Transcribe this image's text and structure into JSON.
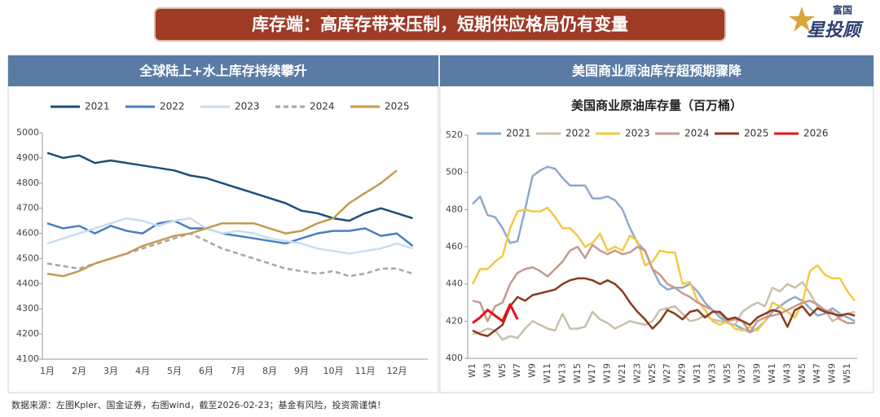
{
  "header": {
    "title": "库存端：高库存带来压制，短期供应格局仍有变量"
  },
  "logo": {
    "small": "富国",
    "big": "星投顾"
  },
  "footer": "数据来源：左图Kpler、国金证券，右图wind，截至2026-02-23；基金有风险，投资需谨慎！",
  "chart_data": [
    {
      "type": "line",
      "panel_title": "全球陆上+水上库存持续攀升",
      "categories": [
        "1月",
        null,
        "2月",
        null,
        "3月",
        null,
        "4月",
        null,
        "5月",
        null,
        "6月",
        null,
        "7月",
        null,
        "8月",
        null,
        "9月",
        null,
        "10月",
        null,
        "11月",
        null,
        "12月",
        null
      ],
      "ylim": [
        4100,
        5000
      ],
      "yticks": [
        4100,
        4200,
        4300,
        4400,
        4500,
        4600,
        4700,
        4800,
        4900,
        5000
      ],
      "grid": false,
      "legend": "top",
      "series": [
        {
          "name": "2021",
          "color": "#1f4e79",
          "line_style": "solid",
          "values": [
            4920,
            4900,
            4910,
            4880,
            4890,
            4880,
            4870,
            4860,
            4850,
            4830,
            4820,
            4800,
            4780,
            4760,
            4740,
            4720,
            4690,
            4680,
            4660,
            4650,
            4680,
            4700,
            4680,
            4660
          ]
        },
        {
          "name": "2022",
          "color": "#4a7ebf",
          "line_style": "solid",
          "values": [
            4640,
            4620,
            4630,
            4600,
            4630,
            4610,
            4600,
            4640,
            4650,
            4620,
            4620,
            4600,
            4590,
            4580,
            4570,
            4560,
            4580,
            4600,
            4610,
            4610,
            4620,
            4590,
            4600,
            4550
          ]
        },
        {
          "name": "2023",
          "color": "#c8ddf0",
          "line_style": "solid",
          "values": [
            4560,
            4580,
            4600,
            4620,
            4640,
            4660,
            4650,
            4630,
            4650,
            4660,
            4620,
            4600,
            4610,
            4600,
            4580,
            4570,
            4560,
            4540,
            4530,
            4520,
            4530,
            4540,
            4560,
            4540
          ]
        },
        {
          "name": "2024",
          "color": "#a6a6a6",
          "line_style": "dashed",
          "values": [
            4480,
            4470,
            4460,
            4480,
            4500,
            4520,
            4540,
            4560,
            4580,
            4600,
            4570,
            4540,
            4520,
            4500,
            4480,
            4460,
            4450,
            4440,
            4450,
            4430,
            4440,
            4460,
            4460,
            4440
          ]
        },
        {
          "name": "2025",
          "color": "#c59a4d",
          "line_style": "solid",
          "values": [
            4440,
            4430,
            4450,
            4480,
            4500,
            4520,
            4550,
            4570,
            4590,
            4600,
            4620,
            4640,
            4640,
            4640,
            4620,
            4600,
            4610,
            4640,
            4660,
            4720,
            4760,
            4800,
            4850,
            null
          ]
        }
      ]
    },
    {
      "type": "line",
      "panel_title": "美国商业原油库存超预期骤降",
      "title": "美国商业原油库存量（百万桶）",
      "categories": [
        "W1",
        null,
        "W3",
        null,
        "W5",
        null,
        "W7",
        null,
        "W9",
        null,
        "W11",
        null,
        "W13",
        null,
        "W15",
        null,
        "W17",
        null,
        "W19",
        null,
        "W21",
        null,
        "W23",
        null,
        "W25",
        null,
        "W27",
        null,
        "W29",
        null,
        "W31",
        null,
        "W33",
        null,
        "W35",
        null,
        "W37",
        null,
        "W39",
        null,
        "W41",
        null,
        "W43",
        null,
        "W45",
        null,
        "W47",
        null,
        "W49",
        null,
        "W51",
        null
      ],
      "ylim": [
        400,
        520
      ],
      "yticks": [
        400,
        420,
        440,
        460,
        480,
        500,
        520
      ],
      "grid": false,
      "legend": "top",
      "series": [
        {
          "name": "2021",
          "color": "#8eaacb",
          "line_style": "solid",
          "values": [
            483,
            487,
            477,
            476,
            470,
            462,
            463,
            480,
            498,
            501,
            503,
            502,
            497,
            493,
            493,
            493,
            486,
            486,
            487,
            485,
            480,
            470,
            462,
            458,
            448,
            440,
            437,
            438,
            438,
            440,
            436,
            430,
            426,
            422,
            419,
            418,
            416,
            414,
            416,
            420,
            425,
            428,
            431,
            433,
            431,
            427,
            423,
            424,
            427,
            424,
            422,
            420
          ]
        },
        {
          "name": "2022",
          "color": "#c9c0a8",
          "line_style": "solid",
          "values": [
            413,
            414,
            416,
            415,
            410,
            412,
            411,
            416,
            420,
            418,
            416,
            415,
            424,
            416,
            416,
            417,
            425,
            421,
            419,
            416,
            418,
            420,
            419,
            418,
            420,
            426,
            427,
            428,
            424,
            420,
            421,
            423,
            421,
            420,
            419,
            418,
            425,
            428,
            430,
            428,
            438,
            436,
            440,
            438,
            441,
            435,
            428,
            426,
            420,
            422,
            424,
            425
          ]
        },
        {
          "name": "2023",
          "color": "#f5c842",
          "line_style": "solid",
          "values": [
            440,
            448,
            448,
            452,
            455,
            470,
            479,
            480,
            479,
            479,
            481,
            476,
            470,
            470,
            466,
            460,
            462,
            467,
            458,
            460,
            458,
            466,
            463,
            450,
            452,
            458,
            457,
            457,
            440,
            441,
            431,
            426,
            420,
            418,
            420,
            416,
            415,
            417,
            415,
            420,
            430,
            428,
            425,
            422,
            430,
            447,
            450,
            445,
            443,
            443,
            436,
            431
          ]
        },
        {
          "name": "2024",
          "color": "#c49a8f",
          "line_style": "solid",
          "values": [
            431,
            430,
            420,
            428,
            430,
            440,
            446,
            448,
            449,
            447,
            444,
            448,
            452,
            458,
            460,
            454,
            461,
            458,
            456,
            458,
            456,
            457,
            460,
            458,
            448,
            445,
            440,
            438,
            435,
            433,
            430,
            428,
            426,
            424,
            420,
            421,
            420,
            414,
            420,
            422,
            423,
            424,
            426,
            428,
            430,
            431,
            429,
            426,
            425,
            421,
            419,
            419
          ]
        },
        {
          "name": "2025",
          "color": "#8b3a1f",
          "line_style": "solid",
          "values": [
            415,
            413,
            412,
            415,
            418,
            428,
            433,
            431,
            434,
            435,
            436,
            437,
            440,
            442,
            443,
            443,
            442,
            440,
            442,
            440,
            436,
            430,
            425,
            421,
            416,
            420,
            426,
            424,
            421,
            425,
            426,
            422,
            425,
            425,
            421,
            422,
            420,
            418,
            422,
            424,
            426,
            425,
            417,
            426,
            428,
            423,
            427,
            425,
            424,
            423,
            424,
            423
          ]
        },
        {
          "name": "2026",
          "color": "#e8101a",
          "line_style": "solid",
          "values": [
            419,
            422,
            426,
            423,
            420,
            429,
            421,
            null,
            null,
            null,
            null,
            null,
            null,
            null,
            null,
            null,
            null,
            null,
            null,
            null,
            null,
            null,
            null,
            null,
            null,
            null,
            null,
            null,
            null,
            null,
            null,
            null,
            null,
            null,
            null,
            null,
            null,
            null,
            null,
            null,
            null,
            null,
            null,
            null,
            null,
            null,
            null,
            null,
            null,
            null,
            null,
            null
          ]
        }
      ]
    }
  ]
}
